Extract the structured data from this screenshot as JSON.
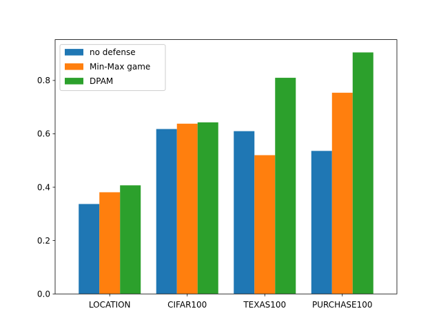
{
  "chart_data": {
    "type": "bar",
    "categories": [
      "LOCATION",
      "CIFAR100",
      "TEXAS100",
      "PURCHASE100"
    ],
    "series": [
      {
        "name": "no defense",
        "color": "#1f77b4",
        "values": [
          0.337,
          0.618,
          0.61,
          0.536
        ]
      },
      {
        "name": "Min-Max game",
        "color": "#ff7f0e",
        "values": [
          0.381,
          0.638,
          0.52,
          0.754
        ]
      },
      {
        "name": "DPAM",
        "color": "#2ca02c",
        "values": [
          0.407,
          0.643,
          0.81,
          0.905
        ]
      }
    ],
    "yticks": [
      "0.0",
      "0.2",
      "0.4",
      "0.6",
      "0.8"
    ],
    "ylim": [
      0,
      0.953
    ],
    "grid": false,
    "legend_position": "top-left"
  }
}
